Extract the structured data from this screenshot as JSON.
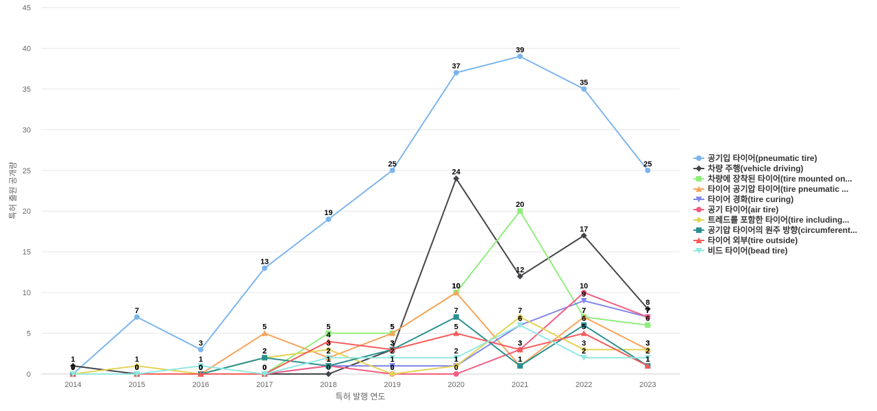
{
  "chart_data": {
    "type": "line",
    "title": "",
    "xlabel": "특허 발행 연도",
    "ylabel": "특허 출원 공개량",
    "ylim": [
      0,
      45
    ],
    "yticks": [
      0,
      5,
      10,
      15,
      20,
      25,
      30,
      35,
      40,
      45
    ],
    "grid": true,
    "legend_position": "right",
    "x": [
      "2014",
      "2015",
      "2016",
      "2017",
      "2018",
      "2019",
      "2020",
      "2021",
      "2022",
      "2023"
    ],
    "series": [
      {
        "name": "공기입 타이어(pneumatic tire)",
        "color": "#7cb5ec",
        "marker": "circle",
        "values": [
          0,
          7,
          3,
          13,
          19,
          25,
          37,
          39,
          35,
          25
        ]
      },
      {
        "name": "차량 주행(vehicle driving)",
        "color": "#434348",
        "marker": "diamond",
        "values": [
          1,
          0,
          0,
          0,
          0,
          3,
          24,
          12,
          17,
          8
        ]
      },
      {
        "name": "차량에 장착된 타이어(tire mounted on...",
        "color": "#90ed7d",
        "marker": "square",
        "values": [
          0,
          0,
          0,
          0,
          5,
          5,
          10,
          20,
          7,
          6
        ]
      },
      {
        "name": "타이어 공기압 타이어(tire pneumatic ...",
        "color": "#f7a35c",
        "marker": "triangle",
        "values": [
          0,
          0,
          0,
          5,
          2,
          5,
          10,
          1,
          7,
          3
        ]
      },
      {
        "name": "타이어 경화(tire curing)",
        "color": "#8085e9",
        "marker": "triangle-down",
        "values": [
          0,
          0,
          0,
          0,
          1,
          1,
          1,
          6,
          9,
          7
        ]
      },
      {
        "name": "공기 타이어(air tire)",
        "color": "#f15c80",
        "marker": "circle",
        "values": [
          0,
          0,
          0,
          0,
          1,
          0,
          0,
          3,
          10,
          7
        ]
      },
      {
        "name": "트레드를 포함한 타이어(tire including...",
        "color": "#e4d354",
        "marker": "diamond",
        "values": [
          0,
          1,
          0,
          2,
          3,
          0,
          1,
          7,
          3,
          3
        ]
      },
      {
        "name": "공기압 타이어의 원주 방향(circumferent...",
        "color": "#2b908f",
        "marker": "square",
        "values": [
          0,
          0,
          0,
          2,
          1,
          3,
          7,
          1,
          6,
          1
        ]
      },
      {
        "name": "타이어 외부(tire outside)",
        "color": "#f45b5b",
        "marker": "triangle",
        "values": [
          0,
          0,
          0,
          0,
          4,
          3,
          5,
          3,
          5,
          1
        ]
      },
      {
        "name": "비드 타이어(bead tire)",
        "color": "#91e8e1",
        "marker": "triangle-down",
        "values": [
          0,
          0,
          1,
          0,
          2,
          2,
          2,
          6,
          2,
          2
        ]
      }
    ]
  }
}
